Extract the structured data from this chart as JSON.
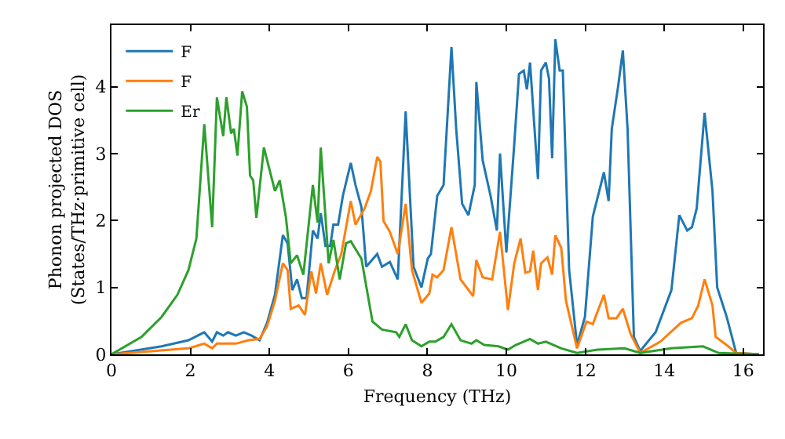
{
  "chart_data": {
    "type": "line",
    "xlabel": "Frequency (THz)",
    "ylabel": "Phonon projected DOS\n(States/THz·primitive cell)",
    "xlim": [
      0,
      16.5
    ],
    "ylim": [
      0,
      4.92
    ],
    "xticks": [
      0,
      2,
      4,
      6,
      8,
      10,
      12,
      14,
      16
    ],
    "yticks": [
      0,
      1,
      2,
      3,
      4
    ],
    "grid": false,
    "legend": "top left",
    "marker": "none",
    "line_style": "solid",
    "series": [
      {
        "name": "F",
        "color": "#1f77b4",
        "x": [
          0,
          1.27,
          1.95,
          2.35,
          2.55,
          2.67,
          2.83,
          2.95,
          3.15,
          3.35,
          3.55,
          3.75,
          3.94,
          4.14,
          4.34,
          4.46,
          4.58,
          4.7,
          4.82,
          4.94,
          5.1,
          5.22,
          5.3,
          5.42,
          5.54,
          5.62,
          5.74,
          5.86,
          6.06,
          6.18,
          6.33,
          6.45,
          6.73,
          6.85,
          7.05,
          7.25,
          7.45,
          7.65,
          7.85,
          8.01,
          8.09,
          8.25,
          8.41,
          8.61,
          8.73,
          8.88,
          9.04,
          9.2,
          9.24,
          9.4,
          9.6,
          9.76,
          9.84,
          10.0,
          10.2,
          10.32,
          10.44,
          10.52,
          10.6,
          10.8,
          10.88,
          11.0,
          11.08,
          11.16,
          11.24,
          11.35,
          11.43,
          11.59,
          11.79,
          11.99,
          12.19,
          12.39,
          12.47,
          12.59,
          12.67,
          12.83,
          12.95,
          13.07,
          13.23,
          13.39,
          13.78,
          14.18,
          14.38,
          14.58,
          14.7,
          14.82,
          15.02,
          15.22,
          15.34,
          15.58,
          15.82,
          16.4
        ],
        "values": [
          0,
          0.12,
          0.21,
          0.33,
          0.19,
          0.33,
          0.28,
          0.33,
          0.28,
          0.33,
          0.28,
          0.21,
          0.47,
          0.89,
          1.78,
          1.66,
          0.96,
          1.12,
          0.84,
          0.84,
          1.85,
          1.73,
          2.11,
          1.62,
          1.62,
          1.94,
          1.94,
          2.37,
          2.86,
          2.53,
          2.2,
          1.31,
          1.5,
          1.31,
          1.38,
          1.12,
          3.63,
          1.31,
          1.0,
          1.43,
          1.5,
          2.37,
          2.53,
          4.59,
          3.37,
          2.25,
          2.08,
          2.53,
          4.07,
          2.9,
          2.37,
          1.85,
          3.0,
          1.52,
          3.14,
          4.19,
          4.24,
          3.96,
          4.36,
          2.62,
          4.24,
          4.36,
          4.12,
          2.93,
          4.71,
          4.24,
          4.24,
          1.26,
          0.14,
          0.56,
          2.06,
          2.53,
          2.72,
          2.29,
          3.37,
          4.0,
          4.54,
          3.37,
          0.26,
          0.05,
          0.33,
          0.96,
          2.08,
          1.85,
          1.9,
          2.18,
          3.61,
          2.44,
          1.0,
          0.56,
          0.02,
          0
        ]
      },
      {
        "name": "F",
        "color": "#ff7f0e",
        "x": [
          0,
          1.95,
          2.35,
          2.55,
          2.67,
          3.15,
          3.47,
          3.75,
          3.94,
          4.14,
          4.34,
          4.46,
          4.54,
          4.74,
          4.9,
          5.06,
          5.18,
          5.3,
          5.46,
          5.66,
          5.82,
          6.06,
          6.18,
          6.41,
          6.57,
          6.73,
          6.81,
          6.89,
          7.05,
          7.25,
          7.45,
          7.61,
          7.85,
          8.05,
          8.13,
          8.25,
          8.41,
          8.61,
          8.84,
          9.16,
          9.24,
          9.4,
          9.64,
          9.84,
          10.04,
          10.2,
          10.36,
          10.48,
          10.6,
          10.68,
          10.8,
          10.88,
          11.04,
          11.16,
          11.24,
          11.39,
          11.51,
          11.79,
          12.03,
          12.19,
          12.47,
          12.59,
          12.79,
          12.95,
          13.15,
          13.39,
          13.9,
          14.42,
          14.7,
          14.86,
          15.02,
          15.22,
          15.3,
          15.62,
          15.82,
          16.4
        ],
        "values": [
          0,
          0.09,
          0.16,
          0.09,
          0.16,
          0.16,
          0.21,
          0.23,
          0.42,
          0.8,
          1.36,
          1.26,
          0.68,
          0.73,
          0.59,
          1.24,
          0.91,
          1.36,
          0.89,
          1.26,
          1.5,
          2.29,
          1.94,
          2.18,
          2.44,
          2.95,
          2.88,
          1.99,
          1.83,
          1.5,
          2.25,
          1.26,
          0.77,
          0.91,
          1.19,
          1.15,
          1.26,
          1.9,
          1.12,
          0.87,
          1.41,
          1.15,
          1.12,
          1.83,
          0.66,
          1.36,
          1.73,
          1.22,
          1.24,
          1.55,
          0.96,
          1.36,
          1.45,
          1.19,
          1.78,
          1.59,
          0.8,
          0.09,
          0.49,
          0.45,
          0.89,
          0.54,
          0.54,
          0.68,
          0.3,
          0.02,
          0.19,
          0.47,
          0.54,
          0.73,
          1.12,
          0.73,
          0.26,
          0.12,
          0.02,
          0
        ]
      },
      {
        "name": "Er",
        "color": "#2ca02c",
        "x": [
          0,
          0.76,
          1.27,
          1.67,
          1.95,
          2.15,
          2.35,
          2.55,
          2.67,
          2.83,
          2.91,
          3.03,
          3.1,
          3.19,
          3.31,
          3.43,
          3.51,
          3.59,
          3.67,
          3.86,
          4.02,
          4.14,
          4.26,
          4.42,
          4.54,
          4.7,
          4.86,
          5.1,
          5.22,
          5.3,
          5.5,
          5.62,
          5.78,
          5.94,
          6.06,
          6.33,
          6.61,
          6.85,
          7.21,
          7.29,
          7.45,
          7.61,
          7.85,
          8.05,
          8.2,
          8.41,
          8.61,
          8.84,
          9.12,
          9.24,
          9.44,
          9.8,
          10.04,
          10.24,
          10.6,
          10.8,
          11.0,
          11.39,
          11.79,
          12.31,
          12.99,
          13.39,
          14.18,
          14.98,
          15.38,
          16.4
        ],
        "values": [
          0,
          0.26,
          0.56,
          0.89,
          1.26,
          1.73,
          3.44,
          1.9,
          3.84,
          3.26,
          3.84,
          3.3,
          3.37,
          2.97,
          3.93,
          3.7,
          2.67,
          2.6,
          2.04,
          3.09,
          2.72,
          2.44,
          2.6,
          2.04,
          1.36,
          1.48,
          1.19,
          2.53,
          1.97,
          3.09,
          1.36,
          1.71,
          1.12,
          1.66,
          1.69,
          1.43,
          0.49,
          0.37,
          0.33,
          0.26,
          0.45,
          0.21,
          0.12,
          0.19,
          0.19,
          0.26,
          0.45,
          0.21,
          0.16,
          0.21,
          0.14,
          0.12,
          0.07,
          0.14,
          0.23,
          0.16,
          0.19,
          0.09,
          0.02,
          0.07,
          0.09,
          0.02,
          0.09,
          0.12,
          0.02,
          0
        ]
      }
    ]
  }
}
